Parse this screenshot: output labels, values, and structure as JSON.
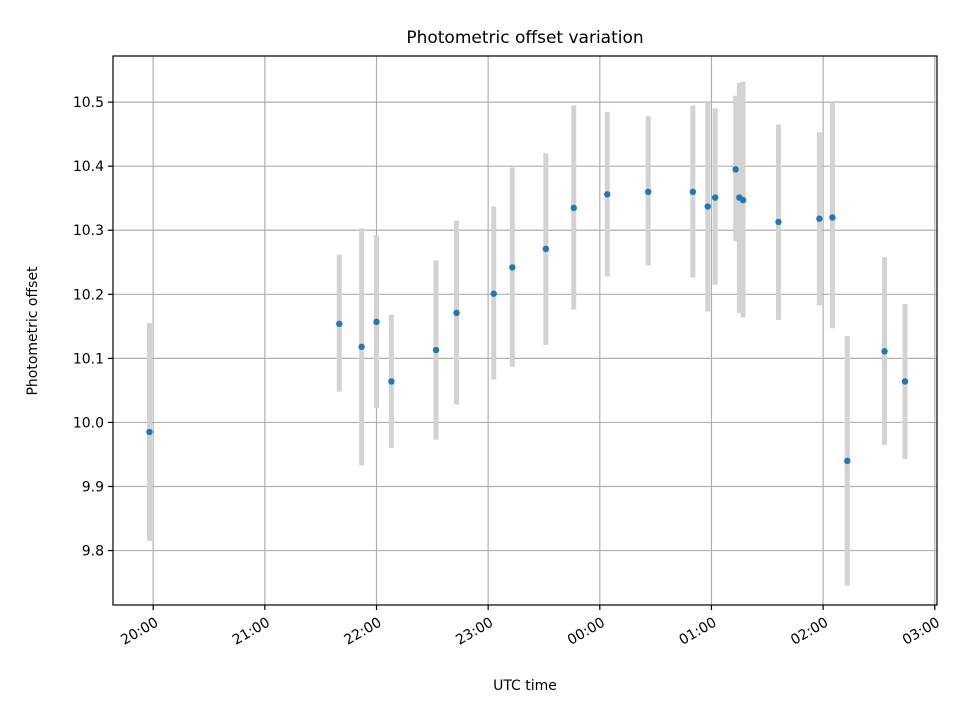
{
  "chart_data": {
    "type": "scatter",
    "title": "Photometric offset variation",
    "xlabel": "UTC time",
    "ylabel": "Photometric offset",
    "x_axis": "time",
    "x_range_hours": [
      19.64,
      27.02
    ],
    "ylim": [
      9.715,
      10.572
    ],
    "grid": true,
    "x_ticks": [
      {
        "hour": 20,
        "label": "20:00"
      },
      {
        "hour": 21,
        "label": "21:00"
      },
      {
        "hour": 22,
        "label": "22:00"
      },
      {
        "hour": 23,
        "label": "23:00"
      },
      {
        "hour": 24,
        "label": "00:00"
      },
      {
        "hour": 25,
        "label": "01:00"
      },
      {
        "hour": 26,
        "label": "02:00"
      },
      {
        "hour": 27,
        "label": "03:00"
      }
    ],
    "y_ticks": [
      {
        "value": 9.8,
        "label": "9.8"
      },
      {
        "value": 9.9,
        "label": "9.9"
      },
      {
        "value": 10.0,
        "label": "10.0"
      },
      {
        "value": 10.1,
        "label": "10.1"
      },
      {
        "value": 10.2,
        "label": "10.2"
      },
      {
        "value": 10.3,
        "label": "10.3"
      },
      {
        "value": 10.4,
        "label": "10.4"
      },
      {
        "value": 10.5,
        "label": "10.5"
      }
    ],
    "point_color": "#1f77b4",
    "errorbar_color": "#d3d3d3",
    "points": [
      {
        "time": "19:58",
        "y": 9.985,
        "lo": 9.815,
        "hi": 10.155
      },
      {
        "time": "21:40",
        "y": 10.154,
        "lo": 10.048,
        "hi": 10.262
      },
      {
        "time": "21:52",
        "y": 10.118,
        "lo": 9.933,
        "hi": 10.303
      },
      {
        "time": "22:00",
        "y": 10.157,
        "lo": 10.023,
        "hi": 10.292
      },
      {
        "time": "22:08",
        "y": 10.064,
        "lo": 9.96,
        "hi": 10.168
      },
      {
        "time": "22:32",
        "y": 10.113,
        "lo": 9.973,
        "hi": 10.253
      },
      {
        "time": "22:43",
        "y": 10.171,
        "lo": 10.028,
        "hi": 10.315
      },
      {
        "time": "23:03",
        "y": 10.201,
        "lo": 10.067,
        "hi": 10.337
      },
      {
        "time": "23:13",
        "y": 10.242,
        "lo": 10.087,
        "hi": 10.398
      },
      {
        "time": "23:31",
        "y": 10.271,
        "lo": 10.121,
        "hi": 10.42
      },
      {
        "time": "23:46",
        "y": 10.335,
        "lo": 10.176,
        "hi": 10.495
      },
      {
        "time": "00:04",
        "y": 10.356,
        "lo": 10.228,
        "hi": 10.485
      },
      {
        "time": "00:26",
        "y": 10.36,
        "lo": 10.245,
        "hi": 10.478
      },
      {
        "time": "00:50",
        "y": 10.36,
        "lo": 10.226,
        "hi": 10.495
      },
      {
        "time": "00:58",
        "y": 10.337,
        "lo": 10.173,
        "hi": 10.5
      },
      {
        "time": "01:02",
        "y": 10.351,
        "lo": 10.215,
        "hi": 10.49
      },
      {
        "time": "01:13",
        "y": 10.395,
        "lo": 10.283,
        "hi": 10.51
      },
      {
        "time": "01:15",
        "y": 10.351,
        "lo": 10.171,
        "hi": 10.53
      },
      {
        "time": "01:17",
        "y": 10.347,
        "lo": 10.164,
        "hi": 10.532
      },
      {
        "time": "01:36",
        "y": 10.313,
        "lo": 10.16,
        "hi": 10.465
      },
      {
        "time": "01:58",
        "y": 10.318,
        "lo": 10.183,
        "hi": 10.453
      },
      {
        "time": "02:05",
        "y": 10.32,
        "lo": 10.147,
        "hi": 10.5
      },
      {
        "time": "02:13",
        "y": 9.94,
        "lo": 9.745,
        "hi": 10.135
      },
      {
        "time": "02:33",
        "y": 10.111,
        "lo": 9.965,
        "hi": 10.258
      },
      {
        "time": "02:44",
        "y": 10.064,
        "lo": 9.943,
        "hi": 10.185
      }
    ]
  }
}
